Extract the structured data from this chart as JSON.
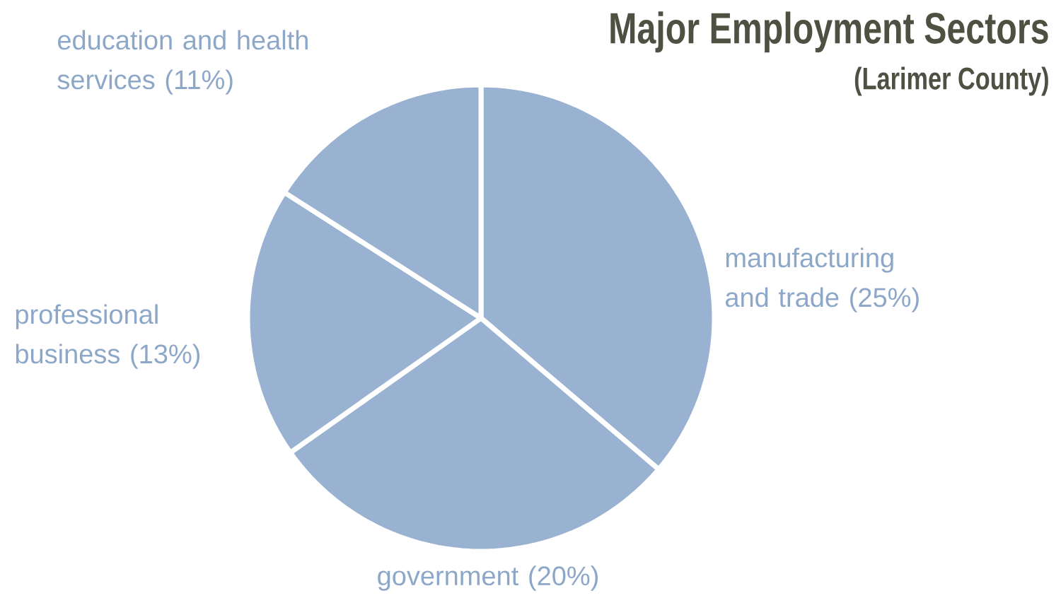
{
  "chart_data": {
    "type": "pie",
    "title": "Major Employment Sectors",
    "subtitle": "(Larimer County)",
    "categories": [
      "manufacturing and trade",
      "government",
      "professional business",
      "education and health services"
    ],
    "values": [
      25,
      20,
      13,
      11
    ],
    "value_labels": [
      "(25%)",
      "(20%)",
      "(13%)",
      "(11%)"
    ],
    "colors": [
      "#99b2d1",
      "#99b2d1",
      "#99b2d1",
      "#99b2d1"
    ]
  }
}
